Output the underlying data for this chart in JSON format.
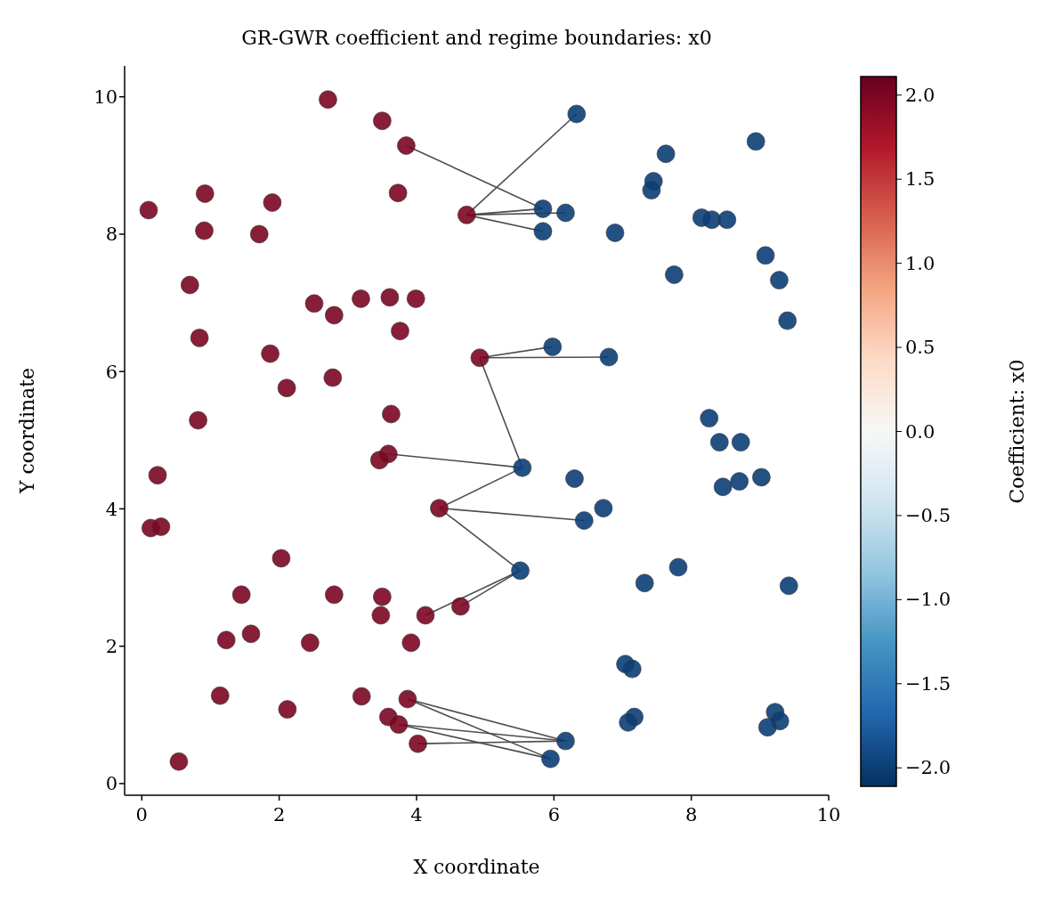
{
  "chart_data": {
    "type": "scatter",
    "title": "GR-GWR coefficient and regime boundaries: x0",
    "xlabel": "X coordinate",
    "ylabel": "Y coordinate",
    "clabel": "Coefficient: x0",
    "xlim": [
      -0.25,
      10
    ],
    "ylim": [
      -0.17,
      10.45
    ],
    "xticks": [
      0,
      2,
      4,
      6,
      8,
      10
    ],
    "yticks": [
      0,
      2,
      4,
      6,
      8,
      10
    ],
    "grid": false,
    "legend": false,
    "marker": "circle",
    "clim": [
      -2.11,
      2.11
    ],
    "cticks": [
      {
        "value": -2,
        "label": "−2.0"
      },
      {
        "value": -1.5,
        "label": "−1.5"
      },
      {
        "value": -1,
        "label": "−1.0"
      },
      {
        "value": -0.5,
        "label": "−0.5"
      },
      {
        "value": 0,
        "label": "0.0"
      },
      {
        "value": 0.5,
        "label": "0.5"
      },
      {
        "value": 1,
        "label": "1.0"
      },
      {
        "value": 1.5,
        "label": "1.5"
      },
      {
        "value": 2,
        "label": "2.0"
      }
    ],
    "series": [
      {
        "type": "line",
        "color": "#4d4d4d",
        "marker": "none",
        "x": [
          3.85,
          5.84
        ],
        "values": [
          9.29,
          8.37
        ]
      },
      {
        "type": "line",
        "color": "#4d4d4d",
        "marker": "none",
        "x": [
          4.73,
          6.33
        ],
        "values": [
          8.28,
          9.75
        ]
      },
      {
        "type": "line",
        "color": "#4d4d4d",
        "marker": "none",
        "x": [
          4.73,
          5.84
        ],
        "values": [
          8.28,
          8.37
        ]
      },
      {
        "type": "line",
        "color": "#4d4d4d",
        "marker": "none",
        "x": [
          4.73,
          6.17
        ],
        "values": [
          8.28,
          8.31
        ]
      },
      {
        "type": "line",
        "color": "#4d4d4d",
        "marker": "none",
        "x": [
          4.73,
          5.84
        ],
        "values": [
          8.28,
          8.04
        ]
      },
      {
        "type": "line",
        "color": "#4d4d4d",
        "marker": "none",
        "x": [
          4.92,
          5.98
        ],
        "values": [
          6.2,
          6.36
        ]
      },
      {
        "type": "line",
        "color": "#4d4d4d",
        "marker": "none",
        "x": [
          4.92,
          6.8
        ],
        "values": [
          6.2,
          6.21
        ]
      },
      {
        "type": "line",
        "color": "#4d4d4d",
        "marker": "none",
        "x": [
          4.92,
          5.54
        ],
        "values": [
          6.2,
          4.6
        ]
      },
      {
        "type": "line",
        "color": "#4d4d4d",
        "marker": "none",
        "x": [
          3.59,
          5.54
        ],
        "values": [
          4.8,
          4.6
        ]
      },
      {
        "type": "line",
        "color": "#4d4d4d",
        "marker": "none",
        "x": [
          4.33,
          5.54
        ],
        "values": [
          4.01,
          4.6
        ]
      },
      {
        "type": "line",
        "color": "#4d4d4d",
        "marker": "none",
        "x": [
          4.33,
          6.44
        ],
        "values": [
          4.01,
          3.83
        ]
      },
      {
        "type": "line",
        "color": "#4d4d4d",
        "marker": "none",
        "x": [
          4.33,
          5.51
        ],
        "values": [
          4.01,
          3.1
        ]
      },
      {
        "type": "line",
        "color": "#4d4d4d",
        "marker": "none",
        "x": [
          4.13,
          5.51
        ],
        "values": [
          2.45,
          3.1
        ]
      },
      {
        "type": "line",
        "color": "#4d4d4d",
        "marker": "none",
        "x": [
          4.64,
          5.51
        ],
        "values": [
          2.58,
          3.1
        ]
      },
      {
        "type": "line",
        "color": "#4d4d4d",
        "marker": "none",
        "x": [
          3.87,
          6.17
        ],
        "values": [
          1.23,
          0.62
        ]
      },
      {
        "type": "line",
        "color": "#4d4d4d",
        "marker": "none",
        "x": [
          3.87,
          5.95
        ],
        "values": [
          1.23,
          0.36
        ]
      },
      {
        "type": "line",
        "color": "#4d4d4d",
        "marker": "none",
        "x": [
          3.74,
          6.17
        ],
        "values": [
          0.86,
          0.62
        ]
      },
      {
        "type": "line",
        "color": "#4d4d4d",
        "marker": "none",
        "x": [
          3.74,
          5.95
        ],
        "values": [
          0.86,
          0.36
        ]
      },
      {
        "type": "line",
        "color": "#4d4d4d",
        "marker": "none",
        "x": [
          4.02,
          6.17
        ],
        "values": [
          0.58,
          0.62
        ]
      },
      {
        "x": [
          2.71,
          3.5,
          3.85,
          3.73,
          4.73,
          0.1,
          0.92,
          0.91,
          1.9,
          1.71,
          0.7,
          2.51,
          2.8,
          3.19,
          3.61,
          3.99,
          3.76,
          0.84,
          1.87,
          4.92,
          2.11,
          2.78,
          3.63,
          0.82,
          3.59,
          3.46,
          0.23,
          0.13,
          0.28,
          4.33,
          2.03,
          1.45,
          2.8,
          3.5,
          3.48,
          4.13,
          4.64,
          1.23,
          1.59,
          2.45,
          3.92,
          1.14,
          2.12,
          3.2,
          3.87,
          3.59,
          3.74,
          4.02,
          0.54
        ],
        "values": [
          9.96,
          9.65,
          9.29,
          8.6,
          8.28,
          8.35,
          8.59,
          8.05,
          8.46,
          8.0,
          7.26,
          6.99,
          6.82,
          7.06,
          7.08,
          7.06,
          6.59,
          6.49,
          6.26,
          6.2,
          5.76,
          5.91,
          5.38,
          5.29,
          4.8,
          4.71,
          4.49,
          3.72,
          3.74,
          4.01,
          3.28,
          2.75,
          2.75,
          2.72,
          2.45,
          2.45,
          2.58,
          2.09,
          2.18,
          2.05,
          2.05,
          1.28,
          1.08,
          1.27,
          1.23,
          0.97,
          0.86,
          0.58,
          0.32
        ],
        "cvalues": [
          2,
          2,
          2,
          2,
          2,
          2,
          2,
          2,
          2,
          2,
          2,
          2,
          2,
          2,
          2,
          2,
          2,
          2,
          2,
          2,
          2,
          2,
          2,
          2,
          2,
          2,
          2,
          2,
          2,
          2,
          2,
          2,
          2,
          2,
          2,
          2,
          2,
          2,
          2,
          2,
          2,
          2,
          2,
          2,
          2,
          2,
          2,
          2,
          2
        ]
      },
      {
        "x": [
          6.33,
          8.94,
          7.63,
          7.45,
          7.42,
          5.84,
          6.17,
          5.84,
          6.89,
          8.15,
          8.3,
          8.52,
          9.08,
          9.28,
          7.75,
          9.4,
          5.98,
          6.8,
          8.26,
          8.41,
          8.72,
          9.02,
          8.7,
          8.46,
          5.54,
          6.3,
          6.72,
          6.44,
          5.51,
          7.81,
          7.32,
          9.42,
          7.04,
          7.14,
          7.17,
          7.08,
          9.22,
          9.29,
          9.11,
          6.17,
          5.95
        ],
        "values": [
          9.75,
          9.35,
          9.17,
          8.77,
          8.64,
          8.37,
          8.31,
          8.04,
          8.02,
          8.24,
          8.21,
          8.21,
          7.69,
          7.33,
          7.41,
          6.74,
          6.36,
          6.21,
          5.32,
          4.97,
          4.97,
          4.46,
          4.4,
          4.32,
          4.6,
          4.44,
          4.01,
          3.83,
          3.1,
          3.15,
          2.92,
          2.88,
          1.74,
          1.67,
          0.97,
          0.89,
          1.04,
          0.91,
          0.82,
          0.62,
          0.36
        ],
        "cvalues": [
          -2,
          -2,
          -2,
          -2,
          -2,
          -2,
          -2,
          -2,
          -2,
          -2,
          -2,
          -2,
          -2,
          -2,
          -2,
          -2,
          -2,
          -2,
          -2,
          -2,
          -2,
          -2,
          -2,
          -2,
          -2,
          -2,
          -2,
          -2,
          -2,
          -2,
          -2,
          -2,
          -2,
          -2,
          -2,
          -2,
          -2,
          -2,
          -2,
          -2,
          -2
        ]
      }
    ]
  }
}
